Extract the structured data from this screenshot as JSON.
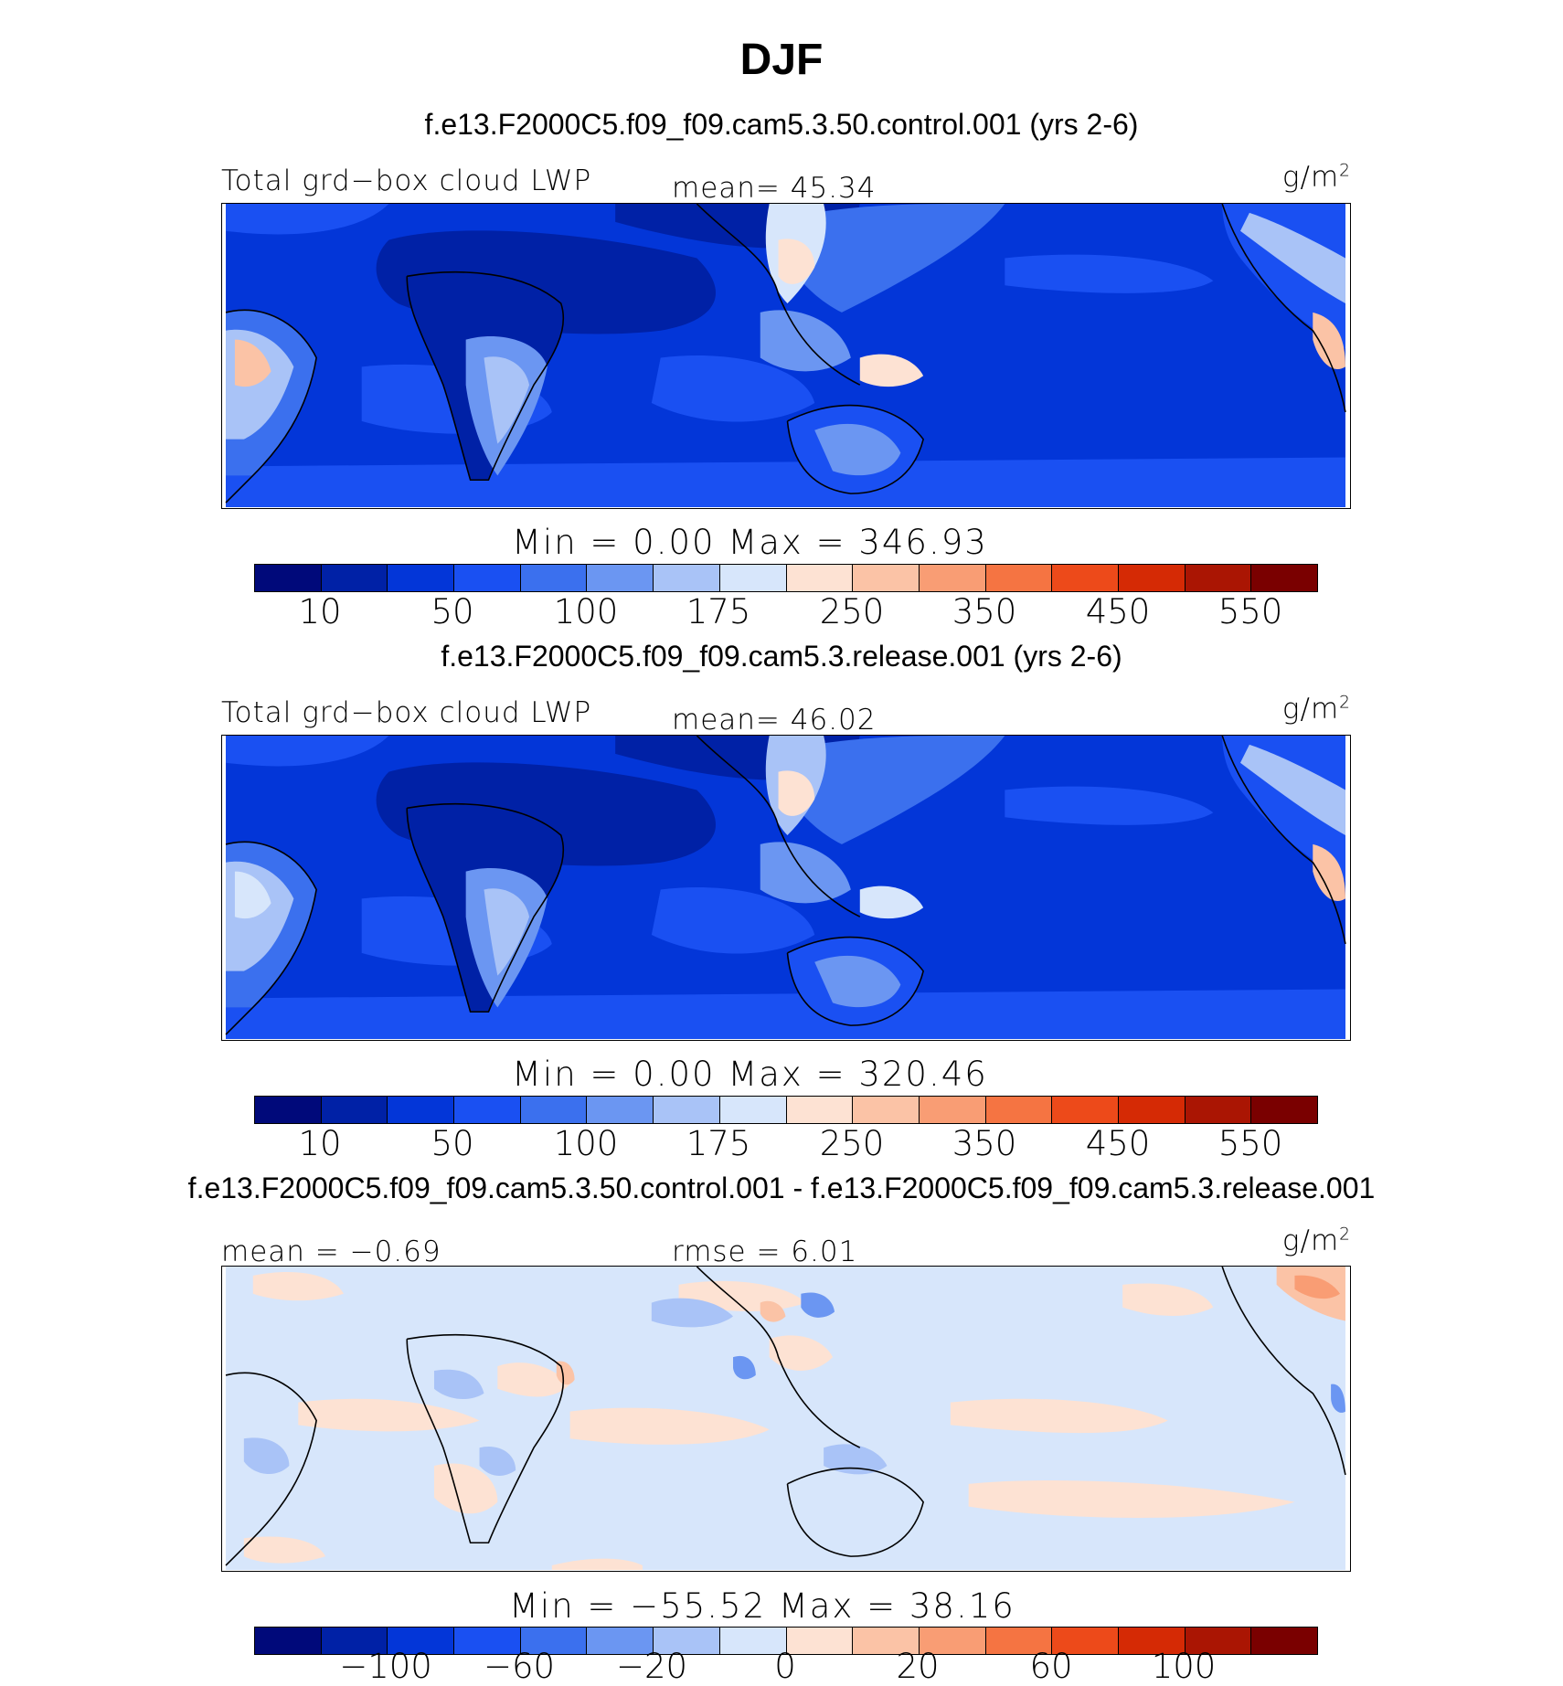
{
  "title": "DJF",
  "units": "g/m",
  "units_exp": "2",
  "panels": [
    {
      "case": "f.e13.F2000C5.f09_f09.cam5.3.50.control.001 (yrs 2-6)",
      "left_label": "Total grd−box cloud LWP",
      "center_label": "mean=  45.34",
      "stats": "Min =    0.00 Max = 346.93",
      "ticks": [
        "10",
        "50",
        "100",
        "175",
        "250",
        "350",
        "450",
        "550"
      ]
    },
    {
      "case": "f.e13.F2000C5.f09_f09.cam5.3.release.001 (yrs 2-6)",
      "left_label": "Total grd−box cloud LWP",
      "center_label": "mean=  46.02",
      "stats": "Min =    0.00 Max = 320.46",
      "ticks": [
        "10",
        "50",
        "100",
        "175",
        "250",
        "350",
        "450",
        "550"
      ]
    },
    {
      "case": "f.e13.F2000C5.f09_f09.cam5.3.50.control.001 - f.e13.F2000C5.f09_f09.cam5.3.release.001",
      "left_label": "mean =  −0.69",
      "center_label": "rmse =    6.01",
      "stats": "Min = −55.52 Max =   38.16",
      "ticks": [
        "−100",
        "−60",
        "−20",
        "0",
        "20",
        "60",
        "100"
      ]
    }
  ],
  "colors": {
    "colorbar": [
      "#00097a",
      "#0021a6",
      "#0336d8",
      "#1a50f2",
      "#3b70ee",
      "#6b96f2",
      "#a9c3f7",
      "#d7e6fb",
      "#fde2d3",
      "#fbc3a6",
      "#f99d74",
      "#f57442",
      "#ed4a1a",
      "#d52a05",
      "#aa1503",
      "#7a0000"
    ],
    "ocean_base": "#0336d8",
    "diff_base": "#d7e6fb"
  }
}
